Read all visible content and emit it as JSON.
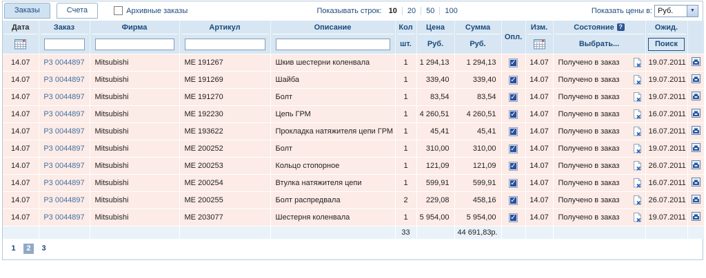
{
  "colors": {
    "header_bg": "#d7e6f2",
    "row_bg": "#fcebe6",
    "totals_bg": "#e9f2f9",
    "navy_text": "#1b4a7c",
    "link_blue": "#4372a3",
    "checkbox_fill": "#2b4f9e",
    "current_page_bg": "#90a9c7"
  },
  "icons": {
    "date_filter": "calendar-icon",
    "changed_filter": "calendar-icon",
    "status_help": "help-icon",
    "row_remove": "remove-from-order-icon",
    "row_basket": "basket-icon",
    "currency_arrow": "chevron-down-icon"
  },
  "tabs": [
    {
      "label": "Заказы",
      "active": true
    },
    {
      "label": "Счета",
      "active": false
    }
  ],
  "archive_checkbox": {
    "label": "Архивные заказы",
    "checked": false
  },
  "rows_selector": {
    "label": "Показывать строк:",
    "options": [
      "10",
      "20",
      "50",
      "100"
    ],
    "selected": "10"
  },
  "currency_selector": {
    "label": "Показать цены в:",
    "value": "Руб."
  },
  "table": {
    "columns": {
      "date": "Дата",
      "order": "Заказ",
      "firm": "Фирма",
      "article": "Артикул",
      "description": "Описание",
      "qty": "Кол",
      "qty_sub": "шт.",
      "price": "Цена",
      "price_sub": "Руб.",
      "sum": "Сумма",
      "sum_sub": "Руб.",
      "paid": "Опл.",
      "changed": "Изм.",
      "status": "Состояние",
      "status_filter": "Выбрать...",
      "expected": "Ожид.",
      "search_button": "Поиск"
    },
    "filters": {
      "order": "",
      "firm": "",
      "article": "",
      "description": ""
    },
    "rows": [
      {
        "date": "14.07",
        "order": "Р3 0044897",
        "firm": "Mitsubishi",
        "article": "ME 191267",
        "description": "Шкив шестерни коленвала",
        "qty": "1",
        "price": "1 294,13",
        "sum": "1 294,13",
        "paid": true,
        "changed": "14.07",
        "status": "Получено в заказ",
        "expected": "19.07.2011"
      },
      {
        "date": "14.07",
        "order": "Р3 0044897",
        "firm": "Mitsubishi",
        "article": "ME 191269",
        "description": "Шайба",
        "qty": "1",
        "price": "339,40",
        "sum": "339,40",
        "paid": true,
        "changed": "14.07",
        "status": "Получено в заказ",
        "expected": "19.07.2011"
      },
      {
        "date": "14.07",
        "order": "Р3 0044897",
        "firm": "Mitsubishi",
        "article": "ME 191270",
        "description": "Болт",
        "qty": "1",
        "price": "83,54",
        "sum": "83,54",
        "paid": true,
        "changed": "14.07",
        "status": "Получено в заказ",
        "expected": "19.07.2011"
      },
      {
        "date": "14.07",
        "order": "Р3 0044897",
        "firm": "Mitsubishi",
        "article": "ME 192230",
        "description": "Цепь ГРМ",
        "qty": "1",
        "price": "4 260,51",
        "sum": "4 260,51",
        "paid": true,
        "changed": "14.07",
        "status": "Получено в заказ",
        "expected": "16.07.2011"
      },
      {
        "date": "14.07",
        "order": "Р3 0044897",
        "firm": "Mitsubishi",
        "article": "ME 193622",
        "description": "Прокладка натяжителя цепи ГРМ",
        "qty": "1",
        "price": "45,41",
        "sum": "45,41",
        "paid": true,
        "changed": "14.07",
        "status": "Получено в заказ",
        "expected": "16.07.2011"
      },
      {
        "date": "14.07",
        "order": "Р3 0044897",
        "firm": "Mitsubishi",
        "article": "ME 200252",
        "description": "Болт",
        "qty": "1",
        "price": "310,00",
        "sum": "310,00",
        "paid": true,
        "changed": "14.07",
        "status": "Получено в заказ",
        "expected": "19.07.2011"
      },
      {
        "date": "14.07",
        "order": "Р3 0044897",
        "firm": "Mitsubishi",
        "article": "ME 200253",
        "description": "Кольцо стопорное",
        "qty": "1",
        "price": "121,09",
        "sum": "121,09",
        "paid": true,
        "changed": "14.07",
        "status": "Получено в заказ",
        "expected": "26.07.2011"
      },
      {
        "date": "14.07",
        "order": "Р3 0044897",
        "firm": "Mitsubishi",
        "article": "ME 200254",
        "description": "Втулка натяжителя цепи",
        "qty": "1",
        "price": "599,91",
        "sum": "599,91",
        "paid": true,
        "changed": "14.07",
        "status": "Получено в заказ",
        "expected": "16.07.2011"
      },
      {
        "date": "14.07",
        "order": "Р3 0044897",
        "firm": "Mitsubishi",
        "article": "ME 200255",
        "description": "Болт распредвала",
        "qty": "2",
        "price": "229,08",
        "sum": "458,16",
        "paid": true,
        "changed": "14.07",
        "status": "Получено в заказ",
        "expected": "26.07.2011"
      },
      {
        "date": "14.07",
        "order": "Р3 0044897",
        "firm": "Mitsubishi",
        "article": "ME 203077",
        "description": "Шестерня коленвала",
        "qty": "1",
        "price": "5 954,00",
        "sum": "5 954,00",
        "paid": true,
        "changed": "14.07",
        "status": "Получено в заказ",
        "expected": "19.07.2011"
      }
    ],
    "totals": {
      "qty": "33",
      "sum": "44 691,83р."
    }
  },
  "pagination": {
    "pages": [
      "1",
      "2",
      "3"
    ],
    "current": "2"
  }
}
